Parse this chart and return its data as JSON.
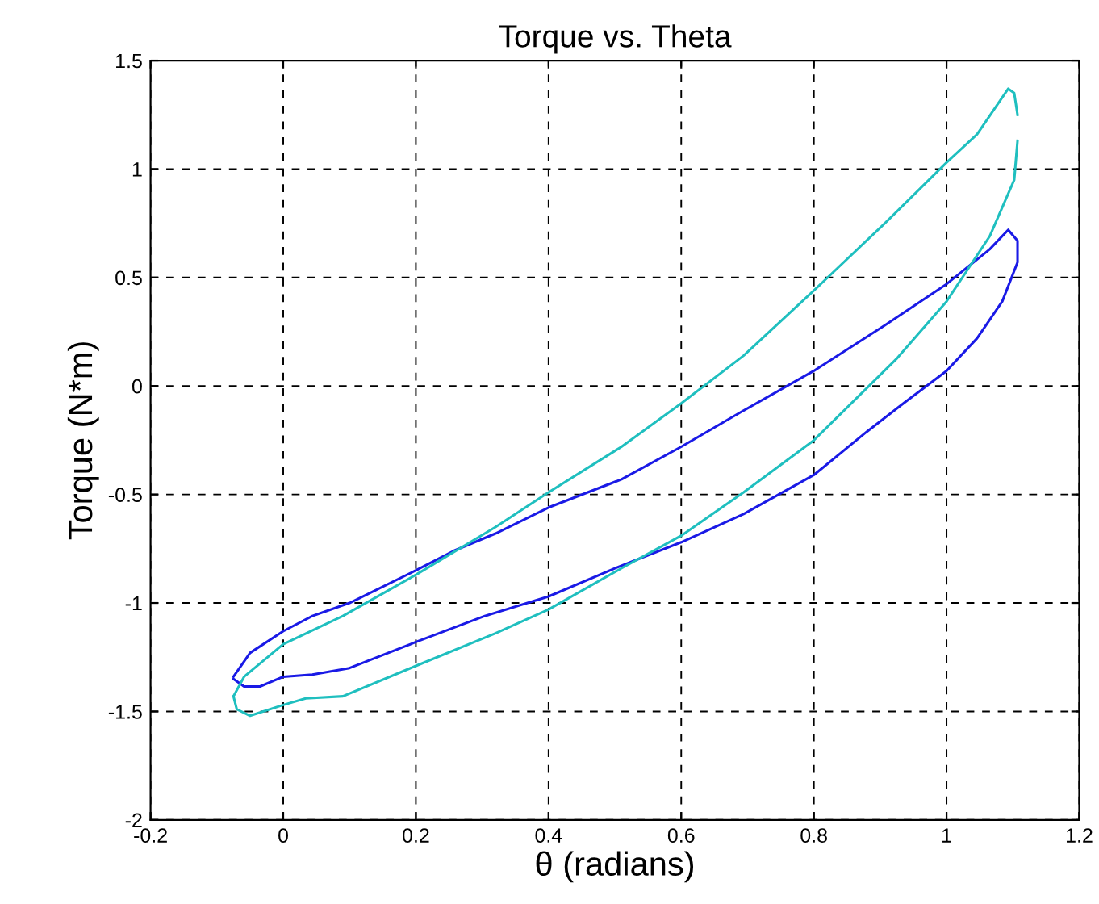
{
  "chart_data": {
    "type": "line",
    "title": "Torque vs. Theta",
    "xlabel": "θ (radians)",
    "ylabel": "Torque (N*m)",
    "xlim": [
      -0.2,
      1.2
    ],
    "xticks": [
      -0.2,
      0,
      0.2,
      0.4,
      0.6,
      0.8,
      1,
      1.2
    ],
    "ylim": [
      -2,
      1.5
    ],
    "yticks": [
      -2,
      -1.5,
      -1,
      -0.5,
      0,
      0.5,
      1,
      1.5
    ],
    "grid": true,
    "line_style": "solid",
    "marker": "none",
    "series": [
      {
        "color": "#1a1ae6",
        "x": [
          -0.075,
          -0.05,
          0,
          0.044,
          0.1,
          0.2,
          0.257,
          0.32,
          0.4,
          0.51,
          0.6,
          0.69,
          0.8,
          0.907,
          1.0,
          1.065,
          1.093,
          1.107,
          1.107,
          1.084,
          1.046,
          1.0,
          0.935,
          0.88,
          0.8,
          0.694,
          0.6,
          0.5,
          0.4,
          0.304,
          0.2,
          0.1,
          0.044,
          0,
          -0.035,
          -0.059,
          -0.075
        ],
        "values": [
          -1.34,
          -1.23,
          -1.13,
          -1.06,
          -1.0,
          -0.85,
          -0.76,
          -0.68,
          -0.56,
          -0.43,
          -0.28,
          -0.12,
          0.07,
          0.28,
          0.47,
          0.63,
          0.72,
          0.67,
          0.57,
          0.39,
          0.22,
          0.07,
          -0.08,
          -0.21,
          -0.41,
          -0.59,
          -0.72,
          -0.84,
          -0.97,
          -1.06,
          -1.18,
          -1.3,
          -1.33,
          -1.34,
          -1.385,
          -1.385,
          -1.35
        ]
      },
      {
        "color": "#1fbfbf",
        "x": [
          -0.075,
          -0.059,
          0,
          0.09,
          0.2,
          0.32,
          0.4,
          0.51,
          0.6,
          0.694,
          0.8,
          0.907,
          1.0,
          1.046,
          1.093,
          1.102,
          1.107
        ],
        "values": [
          -1.43,
          -1.34,
          -1.19,
          -1.06,
          -0.87,
          -0.65,
          -0.49,
          -0.28,
          -0.08,
          0.14,
          0.44,
          0.75,
          1.03,
          1.16,
          1.37,
          1.35,
          1.25
        ]
      },
      {
        "color": "#1fbfbf",
        "x": [
          1.107,
          1.102,
          1.065,
          1.0,
          0.926,
          0.8,
          0.694,
          0.6,
          0.51,
          0.4,
          0.32,
          0.2,
          0.09,
          0.034,
          0,
          -0.05,
          -0.07,
          -0.075
        ],
        "values": [
          1.13,
          0.95,
          0.69,
          0.39,
          0.13,
          -0.25,
          -0.49,
          -0.69,
          -0.84,
          -1.03,
          -1.14,
          -1.29,
          -1.43,
          -1.44,
          -1.47,
          -1.52,
          -1.49,
          -1.43
        ]
      }
    ]
  }
}
